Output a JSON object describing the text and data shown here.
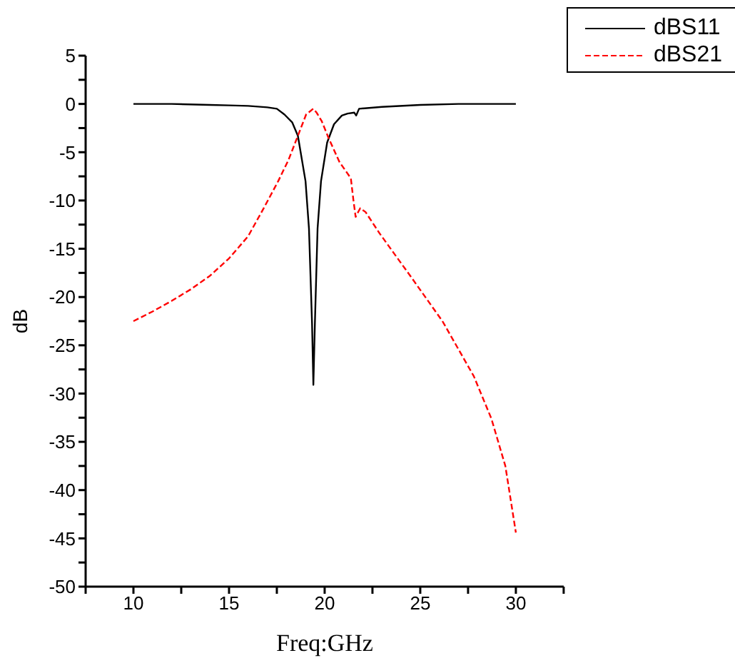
{
  "chart_data": {
    "type": "line",
    "xlabel": "Freq:GHz",
    "ylabel": "dB",
    "xlim": [
      7.5,
      32.5
    ],
    "xticks": [
      {
        "value": 7.5,
        "label": null
      },
      10,
      {
        "value": 12.5,
        "label": null
      },
      15,
      {
        "value": 17.5,
        "label": null
      },
      20,
      {
        "value": 22.5,
        "label": null
      },
      25,
      {
        "value": 27.5,
        "label": null
      },
      30,
      {
        "value": 32.5,
        "label": null
      }
    ],
    "ylim": [
      -50,
      5
    ],
    "yticks": [
      -50,
      {
        "value": -47.5,
        "label": null
      },
      -45,
      {
        "value": -42.5,
        "label": null
      },
      -40,
      {
        "value": -37.5,
        "label": null
      },
      -35,
      {
        "value": -32.5,
        "label": null
      },
      -30,
      {
        "value": -27.5,
        "label": null
      },
      -25,
      {
        "value": -22.5,
        "label": null
      },
      -20,
      {
        "value": -17.5,
        "label": null
      },
      -15,
      {
        "value": -12.5,
        "label": null
      },
      -10,
      {
        "value": -7.5,
        "label": null
      },
      -5,
      {
        "value": -2.5,
        "label": null
      },
      0,
      {
        "value": 2.5,
        "label": null
      },
      5
    ],
    "grid": false,
    "legend": "top right",
    "marker": "none",
    "series": [
      {
        "name": "dBS11",
        "color": "#000000",
        "line_style": "solid",
        "x": [
          10,
          12,
          14,
          15,
          16,
          17,
          17.5,
          17.9,
          18.3,
          18.6,
          19.0,
          19.18,
          19.34,
          19.41,
          19.49,
          19.63,
          19.81,
          20.13,
          20.49,
          20.9,
          21.2,
          21.55,
          21.65,
          21.8,
          23,
          25,
          27,
          30
        ],
        "values": [
          0,
          0,
          -0.1,
          -0.15,
          -0.2,
          -0.35,
          -0.5,
          -1.1,
          -1.9,
          -3.3,
          -8,
          -12.9,
          -22.7,
          -29.1,
          -22.7,
          -12.9,
          -8,
          -4,
          -2.1,
          -1.2,
          -1.0,
          -0.9,
          -1.2,
          -0.5,
          -0.3,
          -0.1,
          0,
          0
        ]
      },
      {
        "name": "dBS21",
        "color": "#ff0000",
        "line_style": "dashed",
        "x": [
          10,
          11,
          12,
          13,
          14,
          15,
          16,
          16.84,
          17.57,
          18.11,
          18.6,
          19.03,
          19.4,
          19.58,
          19.85,
          20.2,
          20.77,
          21.37,
          21.5,
          21.62,
          21.86,
          22.14,
          22.87,
          24.51,
          26.16,
          27.8,
          28.72,
          29.45,
          30
        ],
        "values": [
          -22.5,
          -21.5,
          -20.4,
          -19.2,
          -17.8,
          -16.0,
          -13.7,
          -10.7,
          -8.0,
          -5.8,
          -3.3,
          -1.1,
          -0.5,
          -0.9,
          -1.8,
          -3.5,
          -6.0,
          -7.7,
          -9.9,
          -11.7,
          -10.8,
          -11.2,
          -13.4,
          -17.9,
          -22.5,
          -28.2,
          -32.6,
          -37.5,
          -44.4
        ]
      }
    ]
  }
}
